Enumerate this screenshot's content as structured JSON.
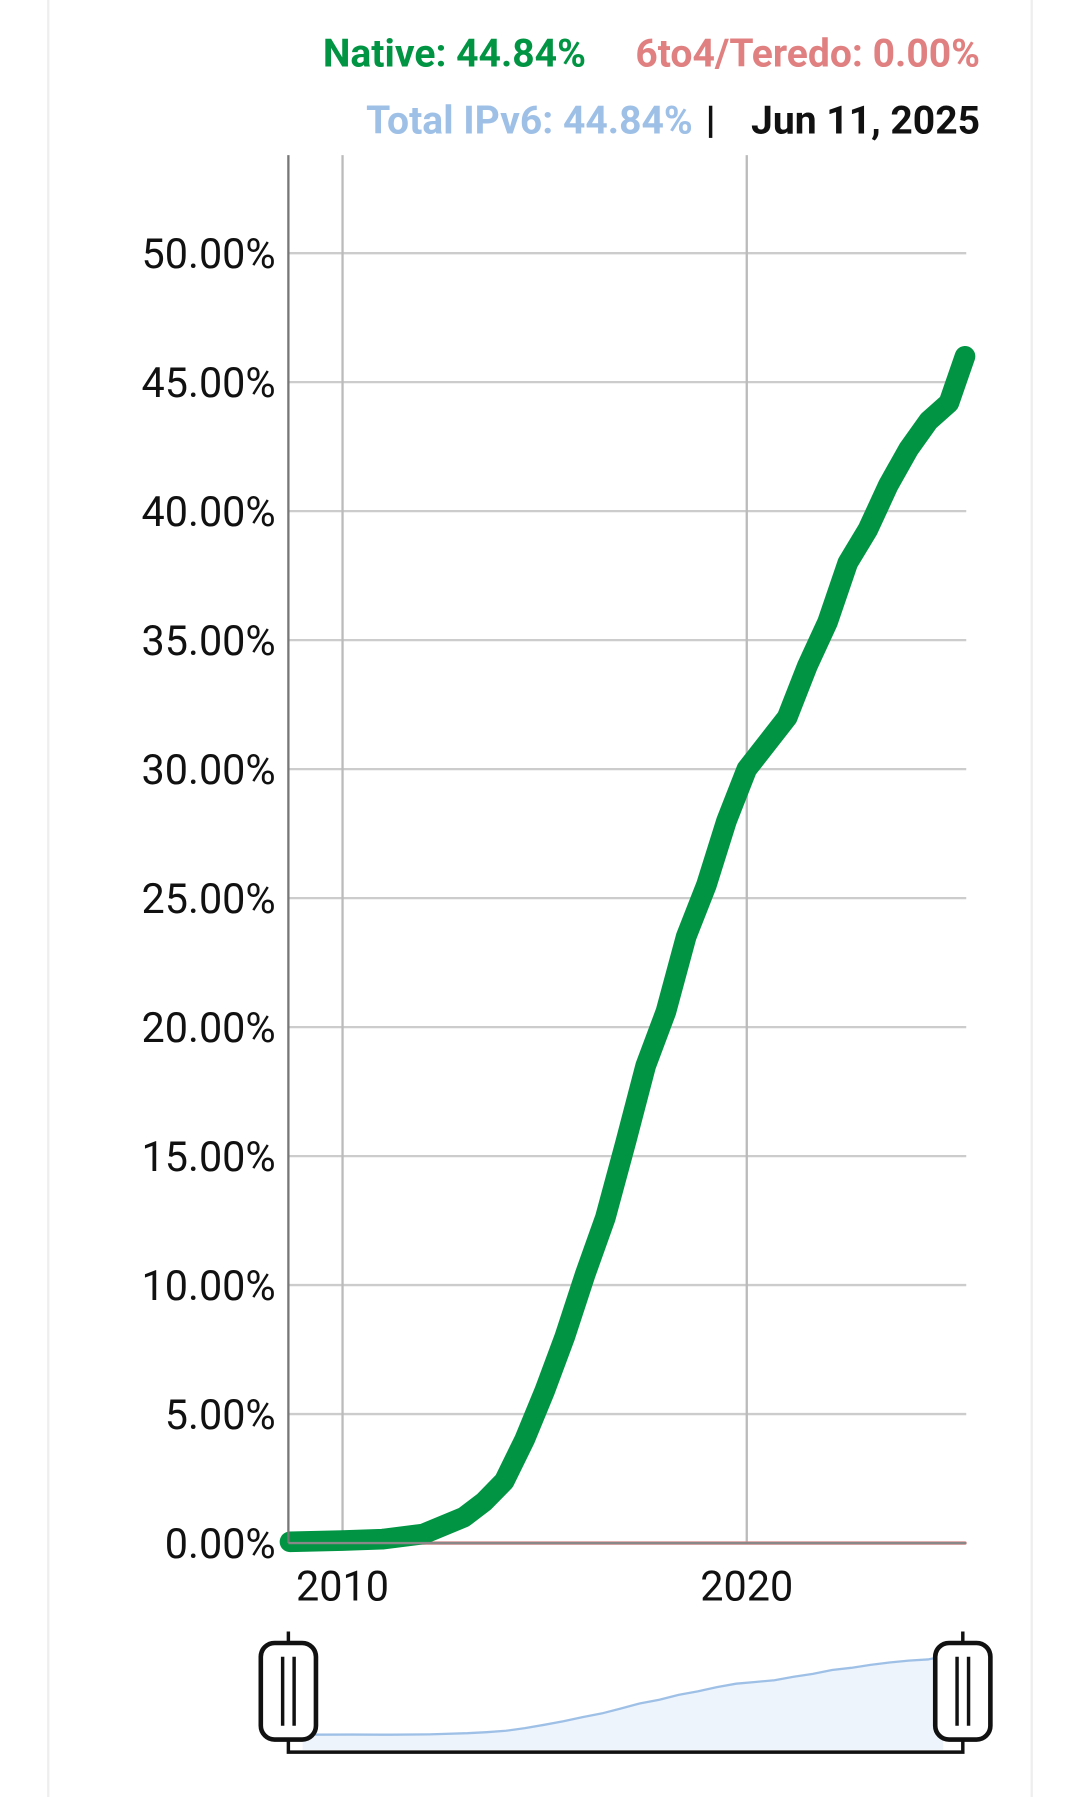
{
  "chart_data": {
    "type": "line",
    "readout": [
      "Native: 44.84%",
      "6to4/Teredo: 0.00%",
      "Total IPv6: 44.84%"
    ],
    "date": "Jun 11, 2025",
    "x": [
      2008.7,
      2010,
      2011,
      2012,
      2013,
      2013.5,
      2014,
      2014.5,
      2015,
      2015.5,
      2016,
      2016.5,
      2017,
      2017.5,
      2018,
      2018.5,
      2019,
      2019.5,
      2020,
      2020.5,
      2021,
      2021.5,
      2022,
      2022.5,
      2023,
      2023.5,
      2024,
      2024.5,
      2025,
      2025.4
    ],
    "series": [
      {
        "color": "#9fc0e6",
        "values": [
          0.15,
          0.2,
          0.15,
          0.35,
          1,
          1.6,
          2.4,
          4,
          5.9,
          8,
          10.4,
          12.6,
          15.5,
          18.5,
          20.6,
          23.5,
          25.5,
          28,
          30,
          31,
          32,
          34,
          35.7,
          38,
          39.3,
          41,
          42.4,
          43.5,
          44.2,
          46
        ]
      },
      {
        "color": "#e08080",
        "values": [
          0.05,
          0.05,
          0.05,
          0,
          0,
          0,
          0,
          0,
          0,
          0,
          0,
          0,
          0,
          0,
          0,
          0,
          0,
          0,
          0,
          0,
          0,
          0,
          0,
          0,
          0,
          0,
          0,
          0,
          0,
          0
        ]
      },
      {
        "color": "#009443",
        "values": [
          0.05,
          0.1,
          0.15,
          0.35,
          1,
          1.6,
          2.4,
          4,
          5.9,
          8,
          10.4,
          12.6,
          15.5,
          18.5,
          20.6,
          23.5,
          25.5,
          28,
          30,
          31,
          32,
          34,
          35.7,
          38,
          39.3,
          41,
          42.4,
          43.5,
          44.2,
          46
        ]
      }
    ],
    "readout_series": [
      2,
      1,
      0
    ],
    "xlim": [
      2008.66,
      2025.43
    ],
    "ylim": [
      0,
      53.8
    ],
    "xticks": [
      2010,
      2020
    ],
    "yticks": [
      {
        "value": 0,
        "label": "0.00%"
      },
      {
        "value": 5,
        "label": "5.00%"
      },
      {
        "value": 10,
        "label": "10.00%"
      },
      {
        "value": 15,
        "label": "15.00%"
      },
      {
        "value": 20,
        "label": "20.00%"
      },
      {
        "value": 25,
        "label": "25.00%"
      },
      {
        "value": 30,
        "label": "30.00%"
      },
      {
        "value": 35,
        "label": "35.00%"
      },
      {
        "value": 40,
        "label": "40.00%"
      },
      {
        "value": 45,
        "label": "45.00%"
      },
      {
        "value": 50,
        "label": "50.00%"
      }
    ],
    "grid": true
  }
}
